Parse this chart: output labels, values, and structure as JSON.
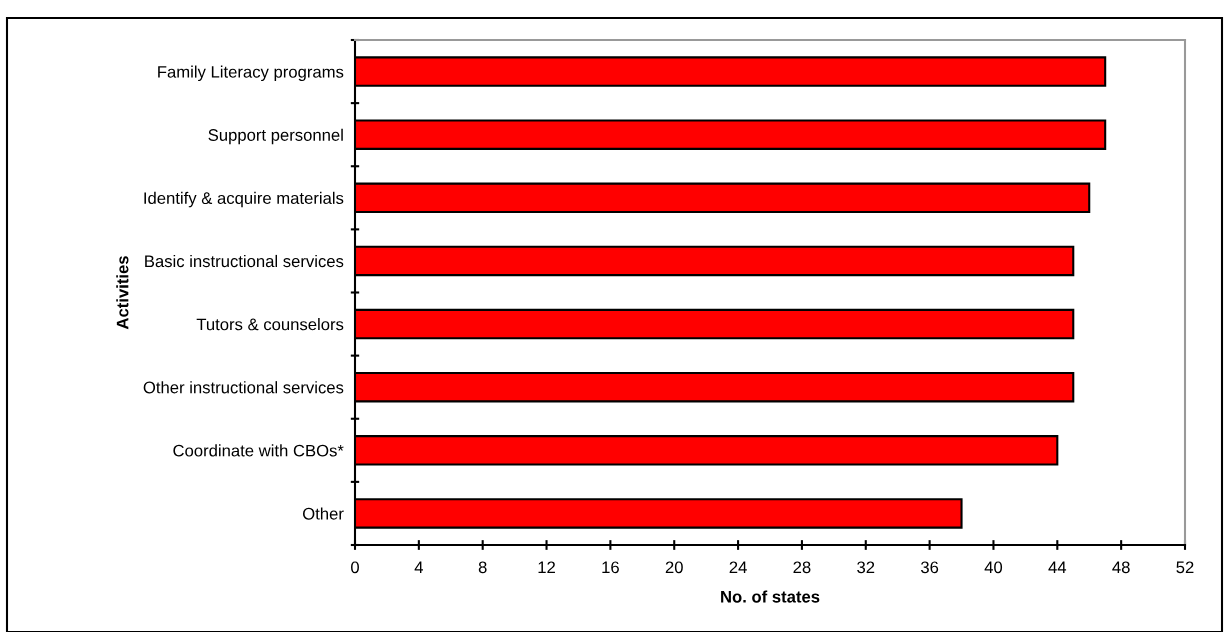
{
  "chart_data": {
    "type": "bar",
    "orientation": "horizontal",
    "xlabel": "No. of states",
    "ylabel": "Activities",
    "categories": [
      "Family Literacy programs",
      "Support personnel",
      "Identify & acquire materials",
      "Basic instructional services",
      "Tutors & counselors",
      "Other instructional services",
      "Coordinate with CBOs*",
      "Other"
    ],
    "values": [
      47,
      47,
      46,
      45,
      45,
      45,
      44,
      38
    ],
    "color": "#ff0000",
    "xlim": [
      0,
      52
    ],
    "xticks": [
      0,
      4,
      8,
      12,
      16,
      20,
      24,
      28,
      32,
      36,
      40,
      44,
      48,
      52
    ],
    "grid": false
  }
}
